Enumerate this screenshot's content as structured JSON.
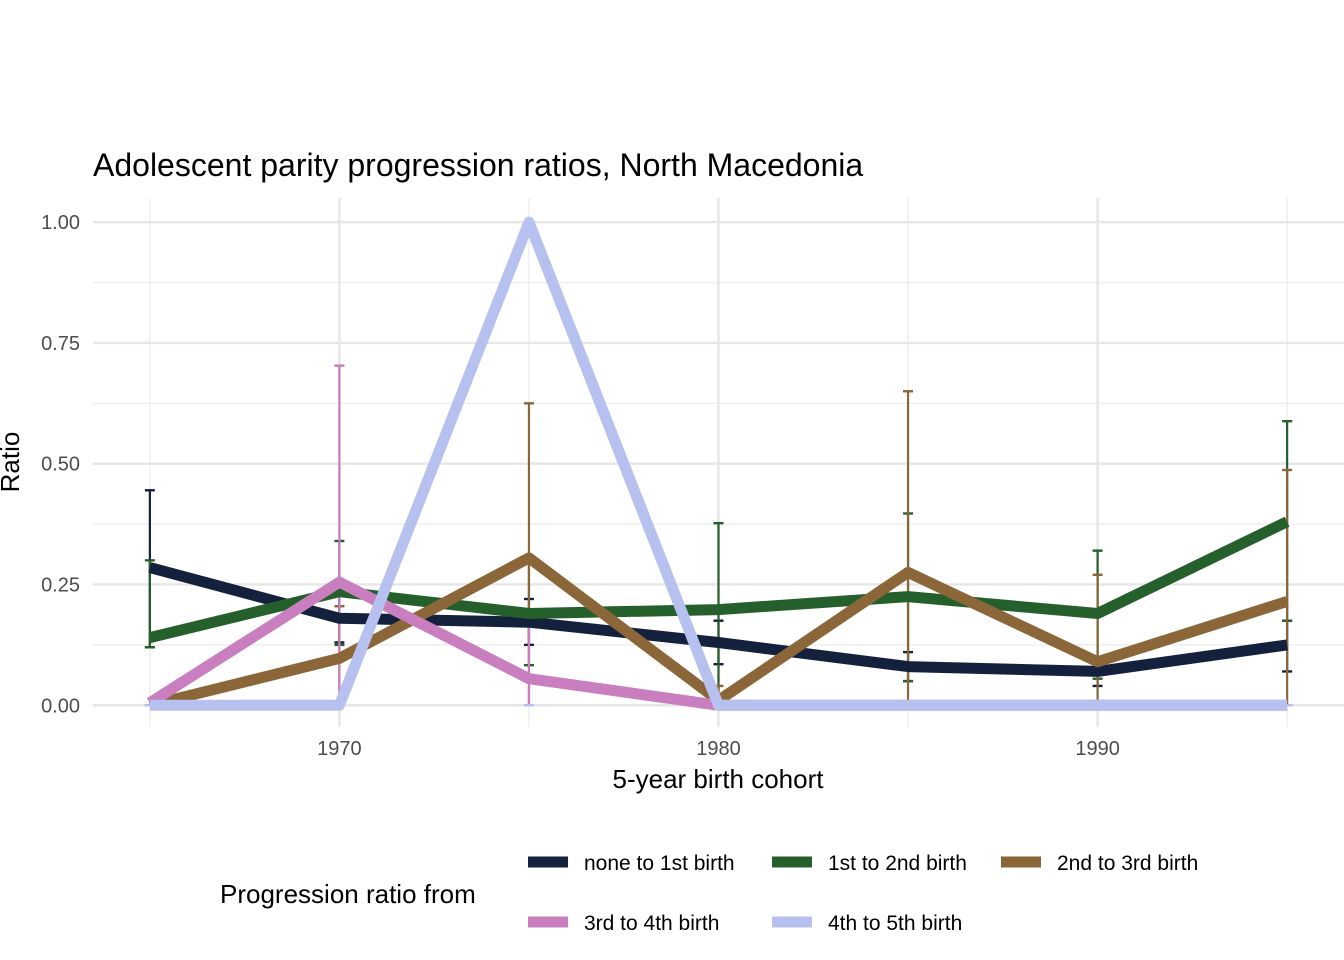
{
  "chart_data": {
    "type": "line",
    "title": "Adolescent parity progression ratios,  North Macedonia",
    "xlabel": "5-year birth cohort",
    "ylabel": "Ratio",
    "x": [
      1965,
      1970,
      1975,
      1980,
      1985,
      1990,
      1995
    ],
    "x_ticks": [
      "1970",
      "1980",
      "1990"
    ],
    "x_tick_values": [
      1970,
      1980,
      1990
    ],
    "y_ticks": [
      "0.00",
      "0.25",
      "0.50",
      "0.75",
      "1.00"
    ],
    "y_tick_values": [
      0,
      0.25,
      0.5,
      0.75,
      1.0
    ],
    "xlim": [
      1963.5,
      1996.5
    ],
    "ylim": [
      -0.045,
      1.05
    ],
    "grid": true,
    "legend_title": "Progression ratio from",
    "legend_position": "bottom",
    "series": [
      {
        "name": "none to 1st birth",
        "color": "#14213d",
        "values": [
          0.285,
          0.18,
          0.172,
          0.13,
          0.08,
          0.07,
          0.125
        ],
        "lower": [
          0.12,
          0.13,
          0.125,
          0.085,
          0.05,
          0.04,
          0.07
        ],
        "upper": [
          0.445,
          0.23,
          0.22,
          0.175,
          0.11,
          0.1,
          0.175
        ]
      },
      {
        "name": "1st to 2nd birth",
        "color": "#245f2c",
        "values": [
          0.14,
          0.235,
          0.19,
          0.198,
          0.225,
          0.19,
          0.38
        ],
        "lower": [
          0.12,
          0.125,
          0.083,
          0.02,
          0.05,
          0.055,
          0.175
        ],
        "upper": [
          0.3,
          0.34,
          0.295,
          0.377,
          0.397,
          0.32,
          0.588
        ]
      },
      {
        "name": "2nd to 3rd birth",
        "color": "#8b6639",
        "values": [
          0.0,
          0.097,
          0.305,
          0.01,
          0.275,
          0.09,
          0.215
        ],
        "lower": [
          0.0,
          0.0,
          0.0,
          0.0,
          0.0,
          0.0,
          0.0
        ],
        "upper": [
          0.0,
          0.205,
          0.625,
          0.04,
          0.65,
          0.27,
          0.487
        ]
      },
      {
        "name": "3rd to 4th birth",
        "color": "#c97ec0",
        "values": [
          0.005,
          0.255,
          0.055,
          0.0,
          0.0,
          0.0,
          0.0
        ],
        "lower": [
          0.0,
          0.0,
          0.0,
          0.0,
          0.0,
          0.0,
          0.0
        ],
        "upper": [
          0.0,
          0.703,
          0.18,
          0.0,
          0.0,
          0.0,
          0.0
        ]
      },
      {
        "name": "4th to 5th birth",
        "color": "#b7c1ef",
        "values": [
          0.0,
          0.0,
          1.0,
          0.0,
          0.0,
          0.0,
          0.0
        ],
        "lower": [
          0.0,
          0.0,
          0.0,
          0.0,
          0.0,
          0.0,
          0.0
        ],
        "upper": [
          0.0,
          0.0,
          0.0,
          0.0,
          0.0,
          0.0,
          0.0
        ]
      }
    ]
  }
}
